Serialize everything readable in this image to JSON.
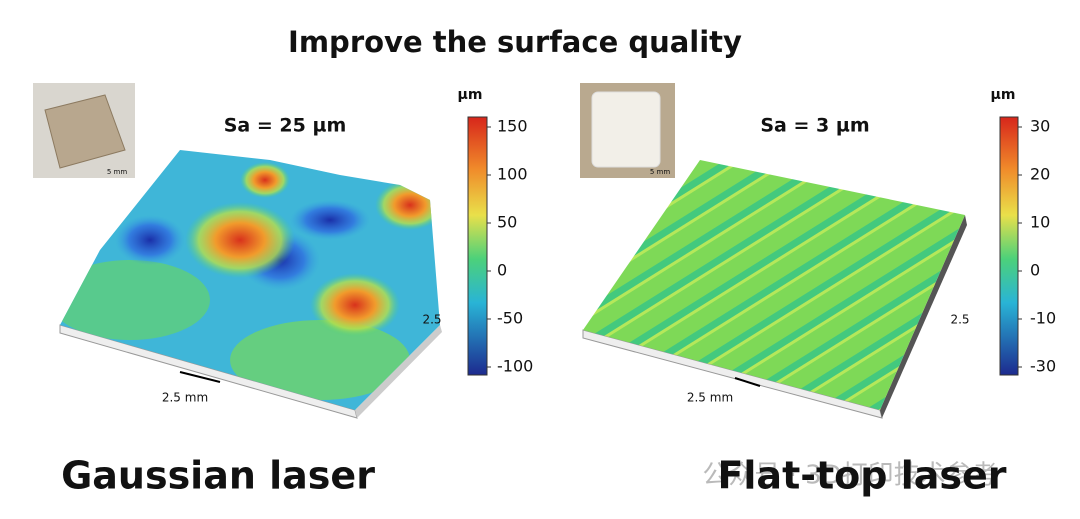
{
  "title": "Improve the surface quality",
  "panels": [
    {
      "thumbnail_scale": "5 mm",
      "roughness": "Sa = 25 µm",
      "unit": "µm",
      "colorbar_ticks": [
        "150",
        "100",
        "50",
        "0",
        "-50",
        "-100"
      ],
      "axis_x": "2.5 mm",
      "axis_y": "2.5",
      "caption": "Gaussian laser"
    },
    {
      "thumbnail_scale": "5 mm",
      "roughness": "Sa = 3 µm",
      "unit": "µm",
      "colorbar_ticks": [
        "30",
        "20",
        "10",
        "0",
        "-10",
        "-30"
      ],
      "axis_x": "2.5 mm",
      "axis_y": "2.5",
      "caption": "Flat-top laser"
    }
  ],
  "watermark": "公众号 · 3D打印技术参考"
}
